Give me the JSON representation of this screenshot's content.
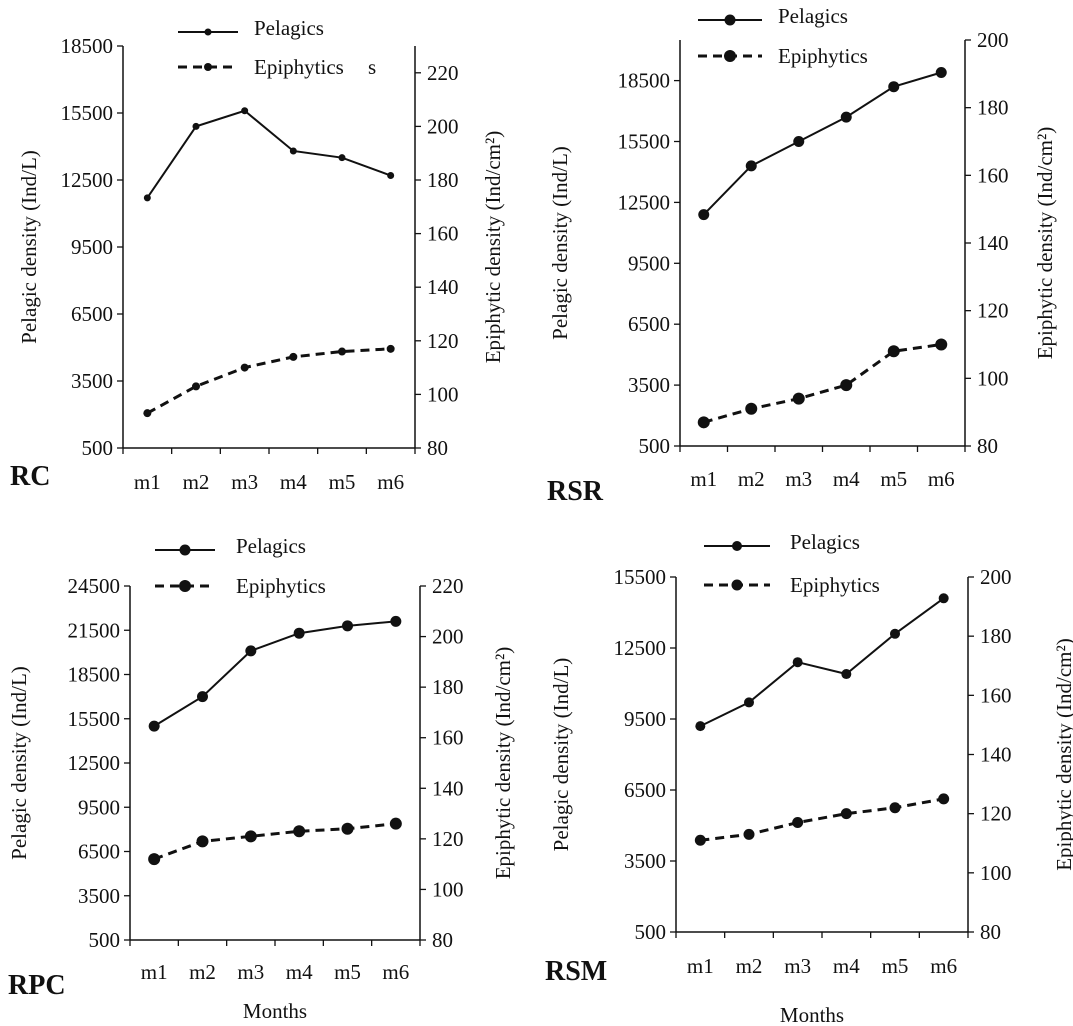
{
  "figure": {
    "colors": {
      "ink": "#111111",
      "background": "#ffffff"
    },
    "months_label": "Months",
    "panels": [
      {
        "id": "rc",
        "panel_label": "RC",
        "legend": {
          "pelagic": "Pelagics",
          "epiphytic": "Epiphytics"
        },
        "legend_stray_glyph": "s"
      },
      {
        "id": "rsr",
        "panel_label": "RSR",
        "legend": {
          "pelagic": "Pelagics",
          "epiphytic": "Epiphytics"
        },
        "legend_stray_glyph": ""
      },
      {
        "id": "rpc",
        "panel_label": "RPC",
        "legend": {
          "pelagic": "Pelagics",
          "epiphytic": "Epiphytics"
        },
        "legend_stray_glyph": ""
      },
      {
        "id": "rsm",
        "panel_label": "RSM",
        "legend": {
          "pelagic": "Pelagics",
          "epiphytic": "Epiphytics"
        },
        "legend_stray_glyph": ""
      }
    ]
  },
  "chart_data": [
    {
      "type": "line",
      "panel": "RC",
      "xlabel": "",
      "ylabel": "Pelagic density (Ind/L)",
      "y2label": "Epiphytic density (Ind/cm²)",
      "categories": [
        "m1",
        "m2",
        "m3",
        "m4",
        "m5",
        "m6"
      ],
      "ylim": [
        500,
        18500
      ],
      "yticks": [
        500,
        3500,
        6500,
        9500,
        12500,
        15500,
        18500
      ],
      "y2lim": [
        80,
        230
      ],
      "y2ticks": [
        80,
        100,
        120,
        140,
        160,
        180,
        200,
        220
      ],
      "series": [
        {
          "name": "Pelagics",
          "axis": "left",
          "line_style": "solid",
          "values": [
            11700,
            14900,
            15600,
            13800,
            13500,
            12700
          ]
        },
        {
          "name": "Epiphytics",
          "axis": "right",
          "line_style": "dashed",
          "values": [
            93,
            103,
            110,
            114,
            116,
            117
          ]
        }
      ]
    },
    {
      "type": "line",
      "panel": "RSR",
      "xlabel": "",
      "ylabel": "Pelagic density (Ind/L)",
      "y2label": "Epiphytic density (Ind/cm²)",
      "categories": [
        "m1",
        "m2",
        "m3",
        "m4",
        "m5",
        "m6"
      ],
      "ylim": [
        500,
        20500
      ],
      "yticks": [
        500,
        3500,
        6500,
        9500,
        12500,
        15500,
        18500
      ],
      "y2lim": [
        80,
        200
      ],
      "y2ticks": [
        80,
        100,
        120,
        140,
        160,
        180,
        200
      ],
      "series": [
        {
          "name": "Pelagics",
          "axis": "left",
          "line_style": "solid",
          "values": [
            11900,
            14300,
            15500,
            16700,
            18200,
            18900
          ]
        },
        {
          "name": "Epiphytics",
          "axis": "right",
          "line_style": "dashed",
          "values": [
            87,
            91,
            94,
            98,
            108,
            110
          ]
        }
      ]
    },
    {
      "type": "line",
      "panel": "RPC",
      "xlabel": "Months",
      "ylabel": "Pelagic density  (Ind/L)",
      "y2label": "Epiphytic density (Ind/cm²)",
      "categories": [
        "m1",
        "m2",
        "m3",
        "m4",
        "m5",
        "m6"
      ],
      "ylim": [
        500,
        24500
      ],
      "yticks": [
        500,
        3500,
        6500,
        9500,
        12500,
        15500,
        18500,
        21500,
        24500
      ],
      "y2lim": [
        80,
        220
      ],
      "y2ticks": [
        80,
        100,
        120,
        140,
        160,
        180,
        200,
        220
      ],
      "series": [
        {
          "name": "Pelagics",
          "axis": "left",
          "line_style": "solid",
          "values": [
            15000,
            17000,
            20100,
            21300,
            21800,
            22100
          ]
        },
        {
          "name": "Epiphytics",
          "axis": "right",
          "line_style": "dashed",
          "values": [
            112,
            119,
            121,
            123,
            124,
            126
          ]
        }
      ]
    },
    {
      "type": "line",
      "panel": "RSM",
      "xlabel": "Months",
      "ylabel": "Pelagic density (Ind/L)",
      "y2label": "Epiphytic density (Ind/cm²)",
      "categories": [
        "m1",
        "m2",
        "m3",
        "m4",
        "m5",
        "m6"
      ],
      "ylim": [
        500,
        15500
      ],
      "yticks": [
        500,
        3500,
        6500,
        9500,
        12500,
        15500
      ],
      "y2lim": [
        80,
        200
      ],
      "y2ticks": [
        80,
        100,
        120,
        140,
        160,
        180,
        200
      ],
      "series": [
        {
          "name": "Pelagics",
          "axis": "left",
          "line_style": "solid",
          "values": [
            9200,
            10200,
            11900,
            11400,
            13100,
            14600
          ]
        },
        {
          "name": "Epiphytics",
          "axis": "right",
          "line_style": "dashed",
          "values": [
            111,
            113,
            117,
            120,
            122,
            125
          ]
        }
      ]
    }
  ]
}
